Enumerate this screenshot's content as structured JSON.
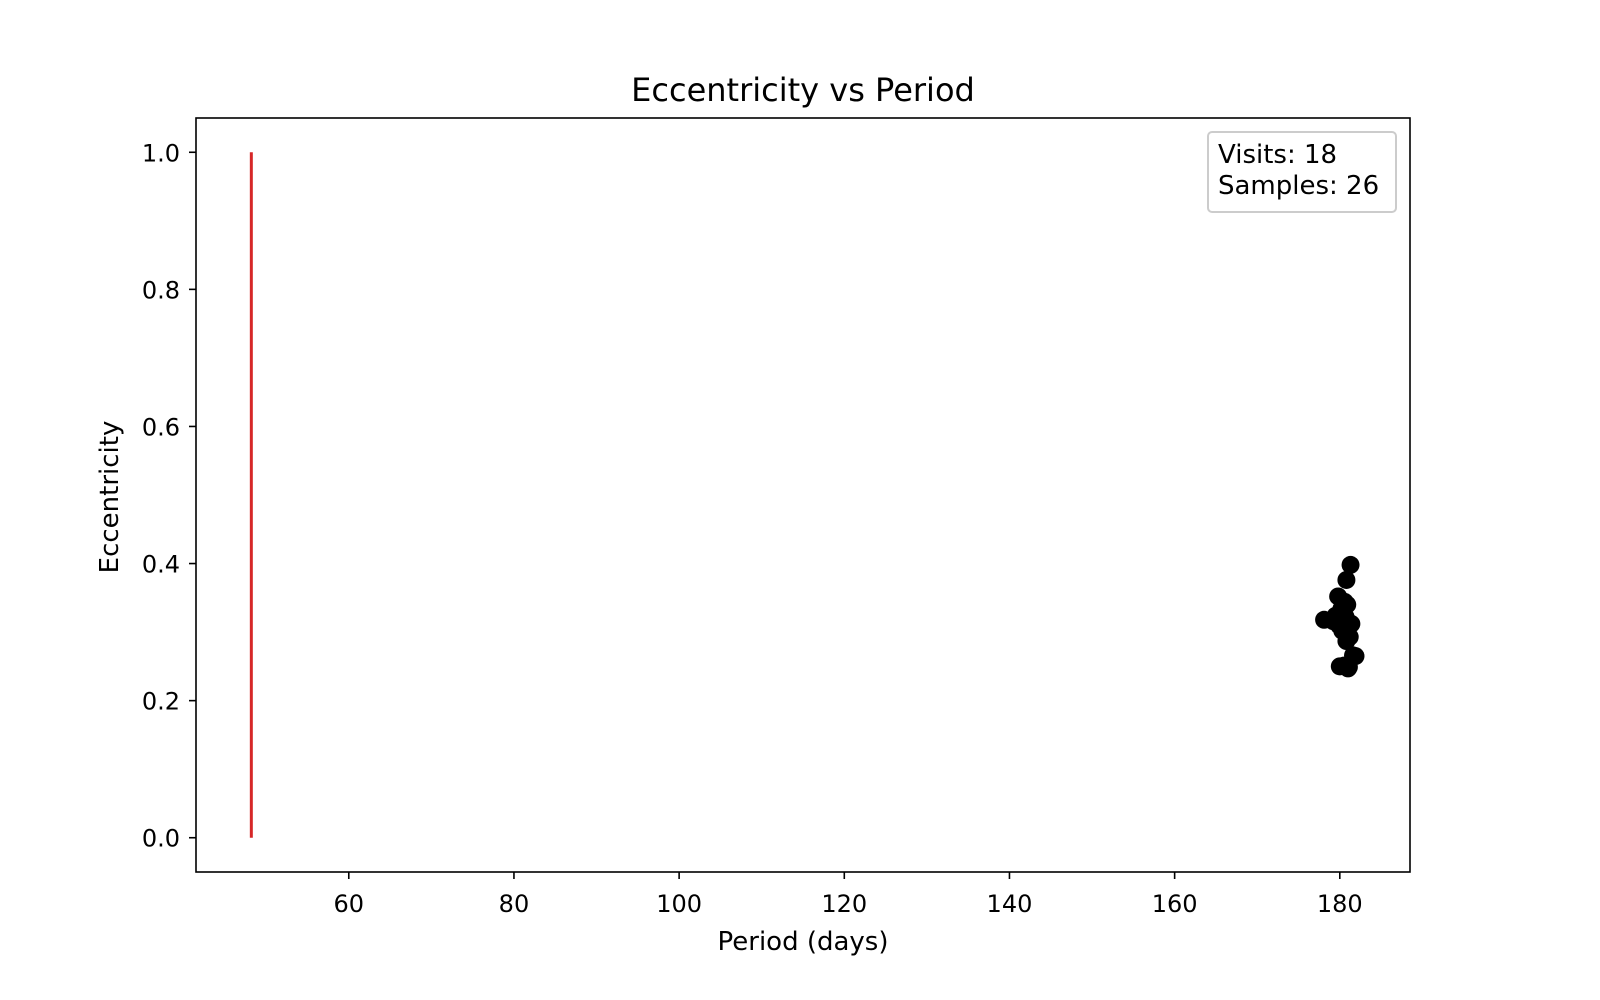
{
  "chart_data": {
    "type": "scatter",
    "title": "Eccentricity vs Period",
    "xlabel": "Period (days)",
    "ylabel": "Eccentricity",
    "xlim": [
      41.5,
      188.5
    ],
    "ylim": [
      -0.05,
      1.05
    ],
    "xticks": [
      60,
      80,
      100,
      120,
      140,
      160,
      180
    ],
    "xtick_labels": [
      "60",
      "80",
      "100",
      "120",
      "140",
      "160",
      "180"
    ],
    "yticks": [
      0.0,
      0.2,
      0.4,
      0.6,
      0.8,
      1.0
    ],
    "ytick_labels": [
      "0.0",
      "0.2",
      "0.4",
      "0.6",
      "0.8",
      "1.0"
    ],
    "grid": false,
    "vline": {
      "x": 48.2,
      "ymin": 0.0,
      "ymax": 1.0,
      "color": "#d62728"
    },
    "series": [
      {
        "marker": "circle",
        "color": "#000000",
        "points": [
          {
            "x": 181.3,
            "y": 0.398
          },
          {
            "x": 180.8,
            "y": 0.376
          },
          {
            "x": 179.8,
            "y": 0.352
          },
          {
            "x": 180.6,
            "y": 0.344
          },
          {
            "x": 180.9,
            "y": 0.34
          },
          {
            "x": 180.2,
            "y": 0.334
          },
          {
            "x": 180.0,
            "y": 0.327
          },
          {
            "x": 179.5,
            "y": 0.324
          },
          {
            "x": 180.7,
            "y": 0.322
          },
          {
            "x": 178.1,
            "y": 0.318
          },
          {
            "x": 179.2,
            "y": 0.316
          },
          {
            "x": 180.4,
            "y": 0.315
          },
          {
            "x": 181.1,
            "y": 0.314
          },
          {
            "x": 181.4,
            "y": 0.312
          },
          {
            "x": 179.9,
            "y": 0.31
          },
          {
            "x": 180.5,
            "y": 0.306
          },
          {
            "x": 180.3,
            "y": 0.302
          },
          {
            "x": 181.0,
            "y": 0.297
          },
          {
            "x": 181.2,
            "y": 0.293
          },
          {
            "x": 180.8,
            "y": 0.287
          },
          {
            "x": 181.6,
            "y": 0.266
          },
          {
            "x": 181.9,
            "y": 0.265
          },
          {
            "x": 180.0,
            "y": 0.25
          },
          {
            "x": 180.5,
            "y": 0.251
          },
          {
            "x": 181.1,
            "y": 0.249
          },
          {
            "x": 181.0,
            "y": 0.247
          }
        ]
      }
    ],
    "annotation": {
      "lines": [
        "Visits: 18",
        "Samples: 26"
      ],
      "placement": "top-right"
    }
  }
}
